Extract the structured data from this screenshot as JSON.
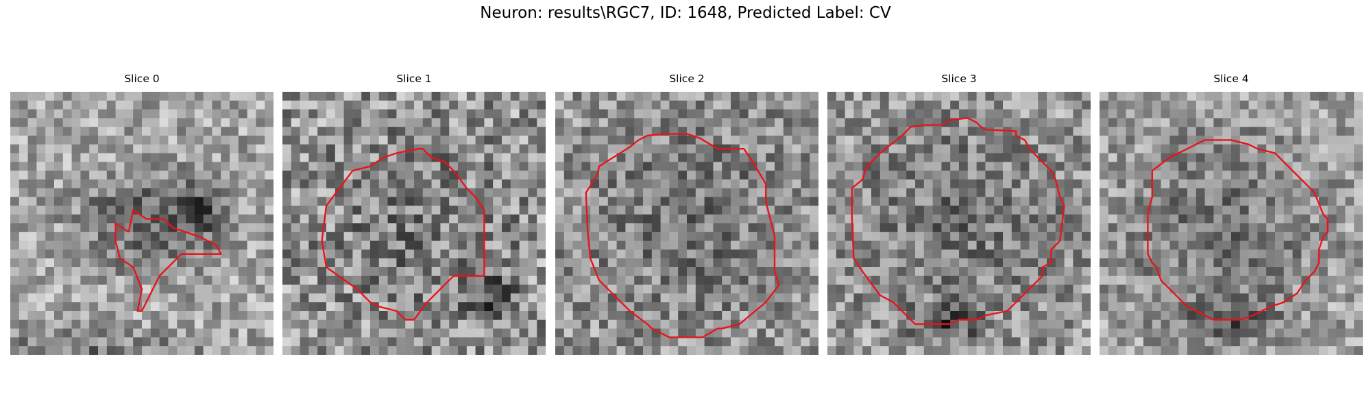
{
  "figure": {
    "title": "Neuron: results\\RGC7, ID: 1648, Predicted Label: CV"
  },
  "panels": [
    {
      "title": "Slice 0"
    },
    {
      "title": "Slice 1"
    },
    {
      "title": "Slice 2"
    },
    {
      "title": "Slice 3"
    },
    {
      "title": "Slice 4"
    }
  ],
  "colors": {
    "contour": "#e8141a",
    "background": "#ffffff"
  }
}
